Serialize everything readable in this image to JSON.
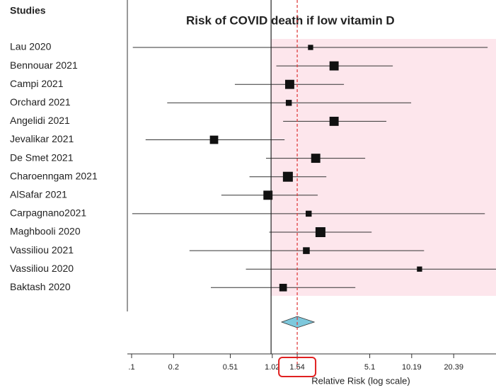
{
  "chart_data": {
    "type": "forest",
    "title": "Risk of COVID death if low vitamin D",
    "column_header": "Studies",
    "xlabel": "Relative Risk (log scale)",
    "log_scale": true,
    "xlim": [
      0.1,
      41
    ],
    "xticks": [
      {
        "value": 0.1,
        "label": ".1"
      },
      0.2,
      0.51,
      1.02,
      1.54,
      5.1,
      10.19,
      20.39
    ],
    "reference_line": 1,
    "shade_color": "#fde6ec",
    "title_color": "#e8336d",
    "highlight_tick": 4,
    "studies": [
      "Lau  2020",
      "Bennouar 2021",
      "Campi 2021",
      "Orchard 2021",
      "Angelidi 2021",
      "Jevalikar 2021",
      "De Smet 2021",
      "Charoenngam 2021",
      "AlSafar 2021",
      "Carpagnano2021",
      "Maghbooli 2020",
      "Vassiliou 2021",
      "Vassiliou 2020",
      "Baktash 2020"
    ],
    "values": [
      1.92,
      2.83,
      1.36,
      1.34,
      2.83,
      0.39,
      2.09,
      1.32,
      0.95,
      1.86,
      2.26,
      1.79,
      11.6,
      1.22
    ],
    "lower": [
      0.102,
      1.09,
      0.55,
      0.18,
      1.22,
      0.126,
      0.92,
      0.7,
      0.44,
      0.101,
      0.97,
      0.26,
      0.66,
      0.37
    ],
    "upper": [
      35.7,
      7.46,
      3.33,
      10.1,
      6.71,
      1.25,
      4.73,
      2.49,
      2.16,
      34.1,
      5.26,
      12.5,
      45,
      4.02
    ],
    "weights": [
      3,
      8,
      8,
      4,
      8,
      7,
      8,
      9,
      8,
      4,
      9,
      5,
      3,
      6
    ],
    "pooled": {
      "value": 1.54,
      "lower": 1.19,
      "upper": 2.04,
      "color": "#7ec8dc"
    }
  }
}
